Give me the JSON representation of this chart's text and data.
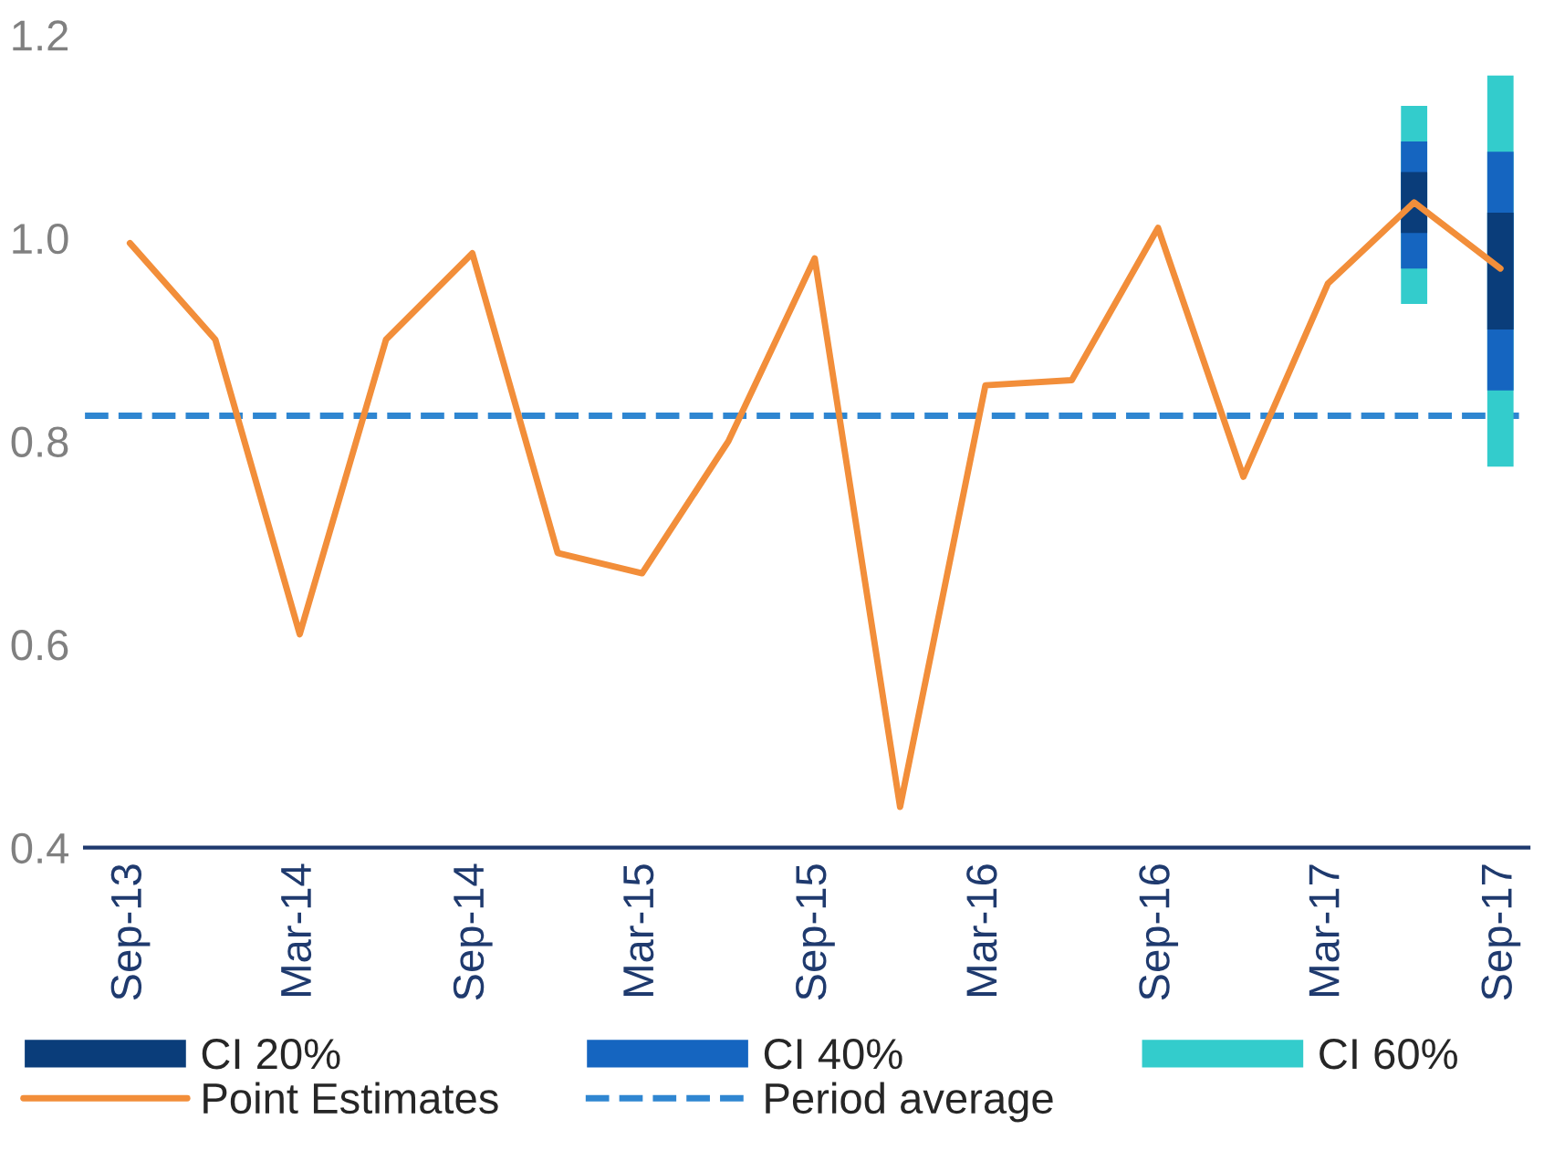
{
  "chart_data": {
    "type": "line",
    "x": [
      "2013-09",
      "2013-12",
      "2014-03",
      "2014-06",
      "2014-09",
      "2014-12",
      "2015-03",
      "2015-06",
      "2015-09",
      "2015-12",
      "2016-03",
      "2016-06",
      "2016-09",
      "2016-12",
      "2017-03",
      "2017-06",
      "2017-09"
    ],
    "series": [
      {
        "name": "CI 60%",
        "type": "bar",
        "color": "#33cccc",
        "x": [
          "2017-06",
          "2017-09"
        ],
        "base": [
          0.935,
          0.775
        ],
        "values": [
          0.195,
          0.385
        ]
      },
      {
        "name": "CI 40%",
        "type": "bar",
        "color": "#1565c0",
        "x": [
          "2017-06",
          "2017-09"
        ],
        "base": [
          0.97,
          0.85
        ],
        "values": [
          0.125,
          0.235
        ]
      },
      {
        "name": "CI 20%",
        "type": "bar",
        "color": "#0a3d7a",
        "x": [
          "2017-06",
          "2017-09"
        ],
        "base": [
          1.005,
          0.91
        ],
        "values": [
          0.06,
          0.115
        ]
      },
      {
        "name": "Point Estimates",
        "color": "#f28e3a",
        "values": [
          0.995,
          0.9,
          0.61,
          0.9,
          0.985,
          0.69,
          0.67,
          0.8,
          0.98,
          0.44,
          0.855,
          0.86,
          1.01,
          0.765,
          0.955,
          1.035,
          0.97
        ]
      }
    ],
    "ref_lines": [
      {
        "axis": "y",
        "value": 0.825,
        "label": "Period average",
        "color": "#2f86d1",
        "line_style": "dashed"
      }
    ],
    "xlim": [
      "2013-07-15",
      "2017-10-01"
    ],
    "xticks": [
      {
        "value": "2013-09",
        "label": "Sep-13"
      },
      {
        "value": "2014-03",
        "label": "Mar-14"
      },
      {
        "value": "2014-09",
        "label": "Sep-14"
      },
      {
        "value": "2015-03",
        "label": "Mar-15"
      },
      {
        "value": "2015-09",
        "label": "Sep-15"
      },
      {
        "value": "2016-03",
        "label": "Mar-16"
      },
      {
        "value": "2016-09",
        "label": "Sep-16"
      },
      {
        "value": "2017-03",
        "label": "Mar-17"
      },
      {
        "value": "2017-09",
        "label": "Sep-17"
      }
    ],
    "ylim": [
      0.4,
      1.2
    ],
    "yticks": [
      0.4,
      0.6,
      0.8,
      {
        "value": 1.0,
        "label": "1.0"
      },
      1.2
    ],
    "grid": false,
    "legend": "bottom",
    "line_style": "solid"
  }
}
